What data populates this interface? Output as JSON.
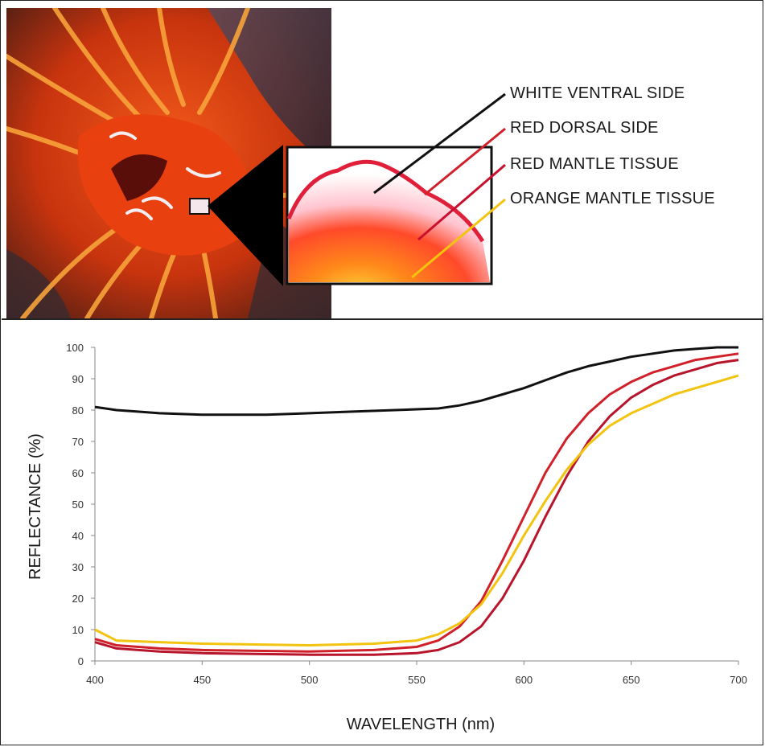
{
  "figure": {
    "photo": "orange-scallop-photo",
    "inset": "zoomed-mantle-inset"
  },
  "legend": [
    {
      "label": "WHITE VENTRAL SIDE",
      "color": "#111111"
    },
    {
      "label": "RED DORSAL SIDE",
      "color": "#d0202a"
    },
    {
      "label": "RED MANTLE TISSUE",
      "color": "#c8102e"
    },
    {
      "label": "ORANGE MANTLE TISSUE",
      "color": "#f2c40f"
    }
  ],
  "chart_data": {
    "type": "line",
    "xlabel": "WAVELENGTH (nm)",
    "ylabel": "REFLECTANCE (%)",
    "xlim": [
      400,
      700
    ],
    "ylim": [
      0,
      100
    ],
    "xticks": [
      400,
      450,
      500,
      550,
      600,
      650,
      700
    ],
    "yticks": [
      0,
      10,
      20,
      30,
      40,
      50,
      60,
      70,
      80,
      90,
      100
    ],
    "grid": false,
    "series": [
      {
        "name": "WHITE VENTRAL SIDE",
        "color": "#111111",
        "x": [
          400,
          410,
          420,
          430,
          450,
          480,
          500,
          520,
          540,
          560,
          570,
          580,
          590,
          600,
          610,
          620,
          630,
          640,
          650,
          660,
          670,
          680,
          690,
          700
        ],
        "y": [
          81,
          80,
          79.5,
          79,
          78.5,
          78.5,
          79,
          79.5,
          80,
          80.5,
          81.5,
          83,
          85,
          87,
          89.5,
          92,
          94,
          95.5,
          97,
          98,
          99,
          99.5,
          100,
          100
        ]
      },
      {
        "name": "RED DORSAL SIDE",
        "color": "#d0202a",
        "x": [
          400,
          410,
          430,
          450,
          500,
          530,
          550,
          560,
          570,
          580,
          590,
          600,
          610,
          620,
          630,
          640,
          650,
          660,
          670,
          680,
          690,
          700
        ],
        "y": [
          7,
          5,
          4,
          3.5,
          3,
          3.5,
          4.5,
          6.5,
          11,
          19,
          32,
          46,
          60,
          71,
          79,
          85,
          89,
          92,
          94,
          96,
          97,
          98
        ]
      },
      {
        "name": "RED MANTLE TISSUE",
        "color": "#b8142b",
        "x": [
          400,
          410,
          430,
          450,
          500,
          530,
          550,
          560,
          570,
          580,
          590,
          600,
          610,
          620,
          630,
          640,
          650,
          660,
          670,
          680,
          690,
          700
        ],
        "y": [
          6,
          4,
          3,
          2.5,
          2,
          2,
          2.5,
          3.5,
          6,
          11,
          20,
          32,
          46,
          59,
          70,
          78,
          84,
          88,
          91,
          93,
          95,
          96
        ]
      },
      {
        "name": "ORANGE MANTLE TISSUE",
        "color": "#f2c40f",
        "x": [
          400,
          410,
          430,
          450,
          500,
          530,
          550,
          560,
          570,
          580,
          590,
          600,
          610,
          620,
          630,
          640,
          650,
          660,
          670,
          680,
          690,
          700
        ],
        "y": [
          10,
          6.5,
          6,
          5.5,
          5,
          5.5,
          6.5,
          8.5,
          12,
          18,
          28,
          40,
          51,
          61,
          69,
          75,
          79,
          82,
          85,
          87,
          89,
          91
        ]
      }
    ]
  }
}
